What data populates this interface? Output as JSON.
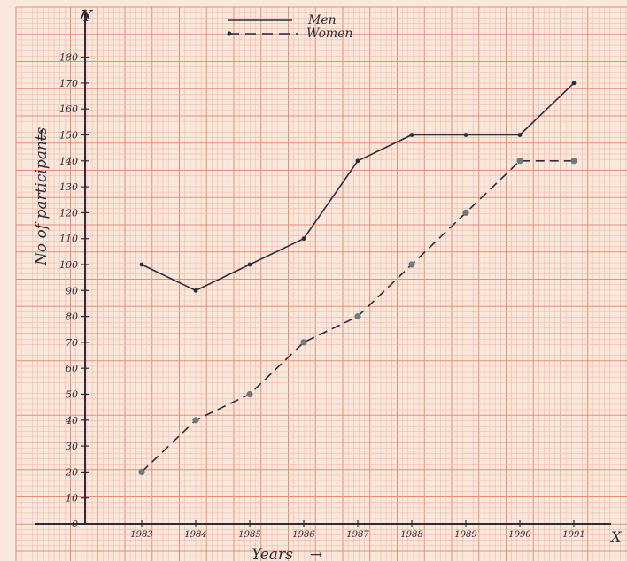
{
  "chart_data": {
    "type": "line",
    "x": [
      1983,
      1984,
      1985,
      1986,
      1987,
      1988,
      1989,
      1990,
      1991
    ],
    "x_tick_labels": [
      "1983",
      "1984",
      "1985",
      "1986",
      "1987",
      "1988",
      "1989",
      "1990",
      "1991"
    ],
    "series": [
      {
        "name": "Men",
        "style": "solid",
        "values": [
          100,
          90,
          100,
          110,
          140,
          150,
          150,
          150,
          170
        ]
      },
      {
        "name": "Women",
        "style": "dashed",
        "values": [
          20,
          40,
          50,
          70,
          80,
          100,
          120,
          140,
          140
        ]
      }
    ],
    "y_ticks": [
      0,
      10,
      20,
      30,
      40,
      50,
      60,
      70,
      80,
      90,
      100,
      110,
      120,
      130,
      140,
      150,
      160,
      170,
      180
    ],
    "ylim": [
      0,
      185
    ],
    "xlabel": "Years",
    "ylabel": "No of participants",
    "x_axis_letter": "X",
    "y_axis_letter": "Y",
    "legend_position": "top-center",
    "grid": true,
    "colors": {
      "paper": "#fbe8dd",
      "grid_minor": "#f2b9a6",
      "grid_major": "#e58d76",
      "ink": "#2b2b3c",
      "women_marker": "#6e7a7c"
    }
  }
}
